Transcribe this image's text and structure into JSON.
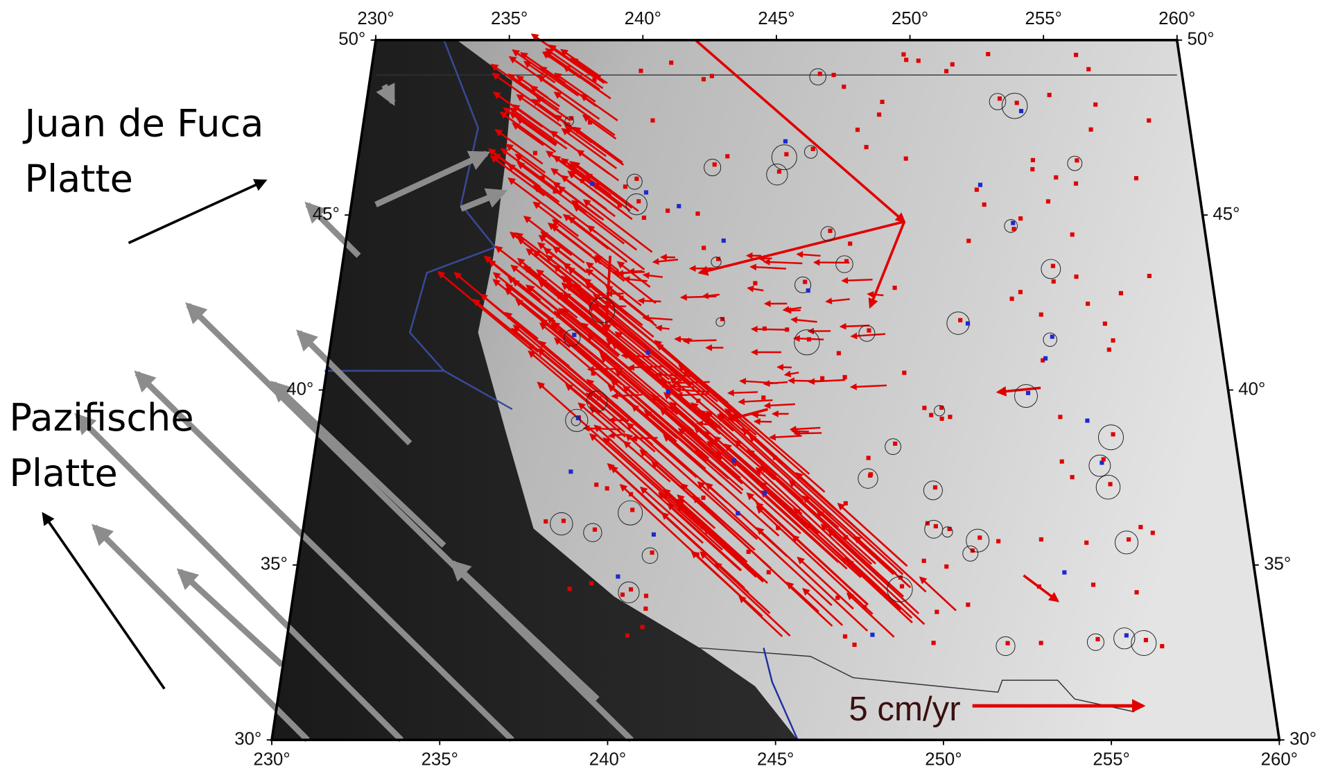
{
  "map": {
    "lonlim": [
      230,
      260
    ],
    "latlim": [
      30,
      50
    ],
    "lon_ticks": [
      {
        "value": 230,
        "label": "230°"
      },
      {
        "value": 235,
        "label": "235°"
      },
      {
        "value": 240,
        "label": "240°"
      },
      {
        "value": 245,
        "label": "245°"
      },
      {
        "value": 250,
        "label": "250°"
      },
      {
        "value": 255,
        "label": "255°"
      },
      {
        "value": 260,
        "label": "260°"
      }
    ],
    "lat_ticks": [
      {
        "value": 30,
        "label": "30°"
      },
      {
        "value": 35,
        "label": "35°"
      },
      {
        "value": 40,
        "label": "40°"
      },
      {
        "value": 45,
        "label": "45°"
      },
      {
        "value": 50,
        "label": "50°"
      }
    ],
    "plate_labels": {
      "juan_de_fuca": [
        "Juan de Fuca",
        "Platte"
      ],
      "pacific": [
        "Pazifische",
        "Platte"
      ]
    },
    "scale_label": "5 cm/yr"
  }
}
